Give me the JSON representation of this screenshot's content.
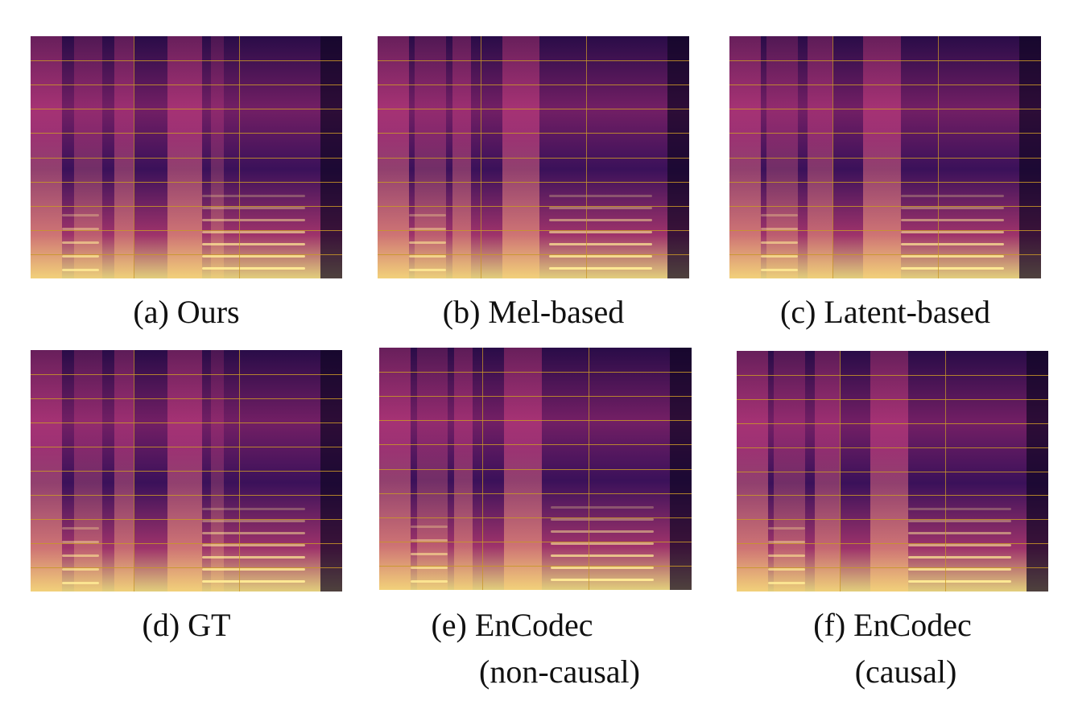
{
  "panels": [
    {
      "id": "a",
      "label": "(a) Ours"
    },
    {
      "id": "b",
      "label": "(b) Mel-based"
    },
    {
      "id": "c",
      "label": "(c) Latent-based"
    },
    {
      "id": "d",
      "label": "(d) GT"
    },
    {
      "id": "e",
      "label": "(e) EnCodec",
      "label2": "(non-causal)"
    },
    {
      "id": "f",
      "label": "(f) EnCodec",
      "label2": "(causal)"
    }
  ],
  "colors": {
    "background_dark": "#2a0a4a",
    "mid": "#d83a7a",
    "bright": "#ffe98a",
    "grid": "#c89628"
  }
}
